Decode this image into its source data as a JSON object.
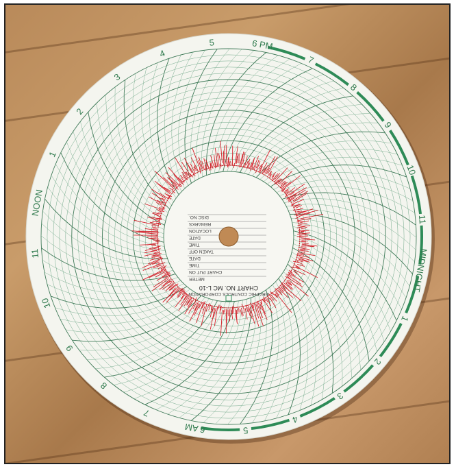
{
  "image": {
    "subject": "circular-chart-recorder-paper",
    "colors": {
      "paper": "#f4f5ef",
      "grid": "#6fa888",
      "grid_dark": "#3f7a58",
      "trace": "#d4202a",
      "hour_band": "#2e8b57",
      "wood": "#b98a5a"
    }
  },
  "hour_labels": [
    {
      "text": "6 PM"
    },
    {
      "text": "7"
    },
    {
      "text": "8"
    },
    {
      "text": "9"
    },
    {
      "text": "10"
    },
    {
      "text": "11"
    },
    {
      "text": "MIDNIGHT"
    },
    {
      "text": "1"
    },
    {
      "text": "2"
    },
    {
      "text": "3"
    },
    {
      "text": "4"
    },
    {
      "text": "5"
    },
    {
      "text": "6 AM"
    },
    {
      "text": "7"
    },
    {
      "text": "8"
    },
    {
      "text": "9"
    },
    {
      "text": "10"
    },
    {
      "text": "11"
    },
    {
      "text": "NOON"
    },
    {
      "text": "1"
    },
    {
      "text": "2"
    },
    {
      "text": "3"
    },
    {
      "text": "4"
    },
    {
      "text": "5"
    }
  ],
  "center_label": {
    "fields": [
      "METER",
      "CHART PUT ON",
      "TIME",
      "DATE",
      "TAKEN OFF",
      "TIME",
      "DATE",
      "LOCATION",
      "REMARKS",
      "DISC NO."
    ],
    "chart_no": "CHART NO. MC L-10",
    "maker": "GRAPHIC CONTROLS CORPORATION"
  }
}
